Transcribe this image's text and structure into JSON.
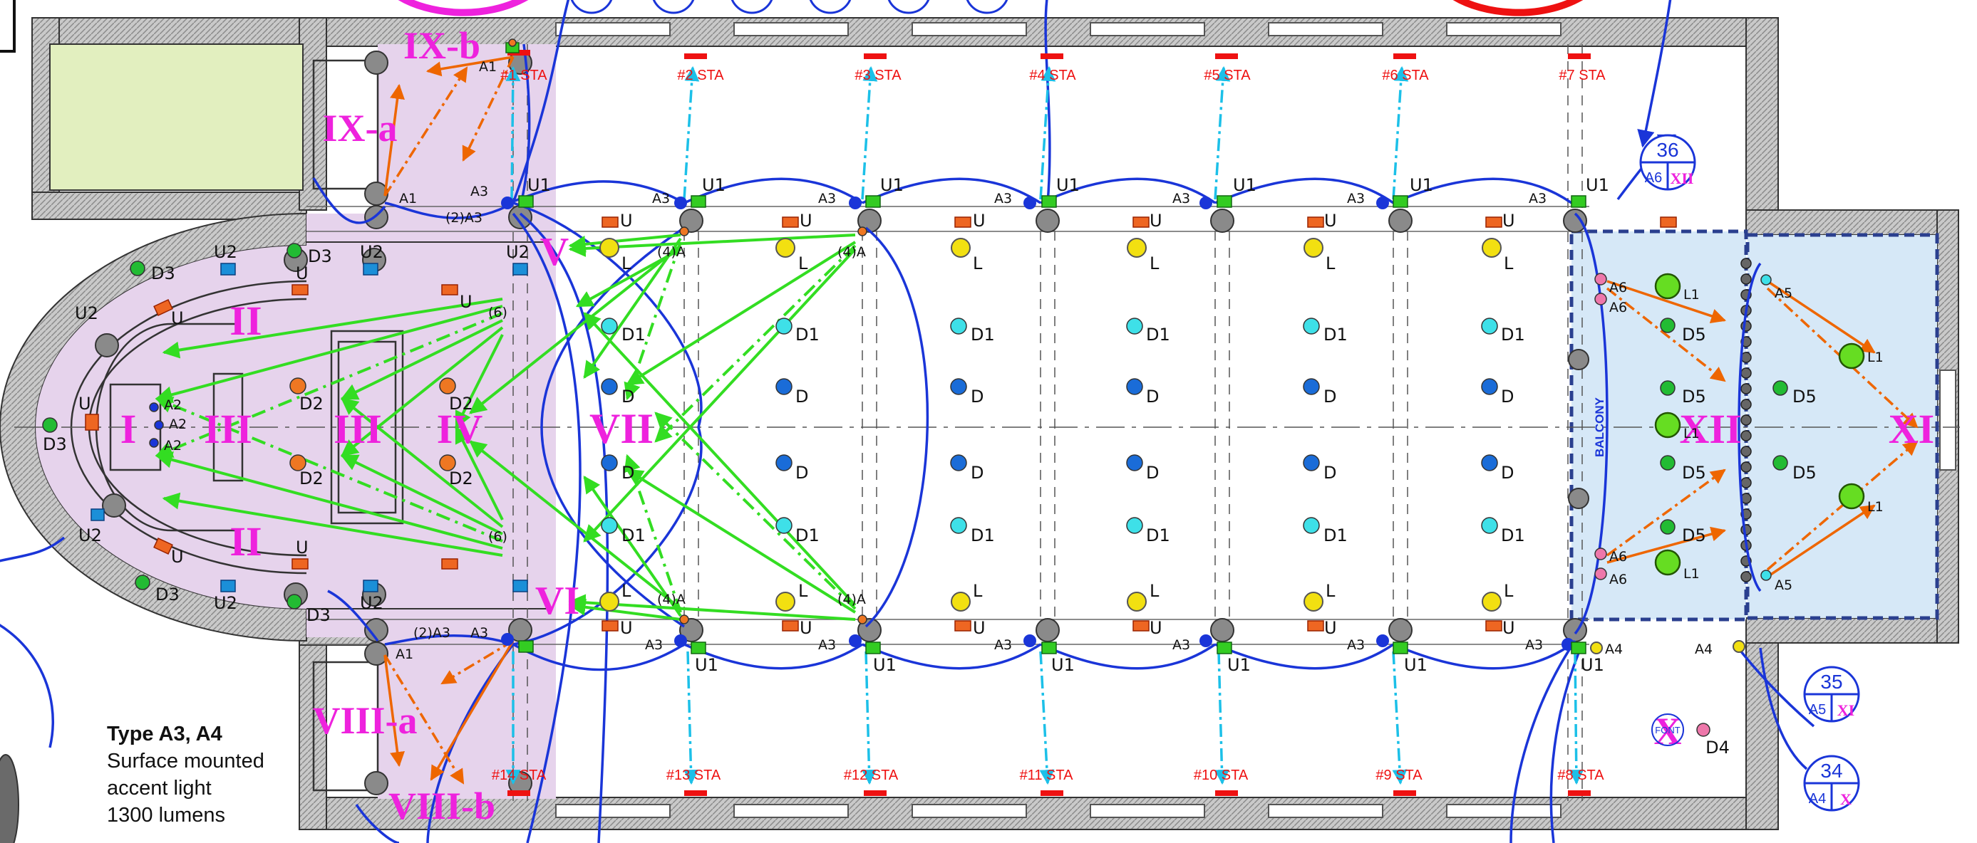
{
  "legend": {
    "title": "Type A3, A4",
    "lines": [
      "Surface mounted",
      "accent light",
      "1300 lumens"
    ]
  },
  "zones": {
    "I": "I",
    "II_top": "II",
    "II_bottom": "II",
    "III_left": "III",
    "III_right": "III",
    "IV": "IV",
    "V": "V",
    "VI": "VI",
    "VII": "VII",
    "VIII_a": "VIII-a",
    "VIII_b": "VIII-b",
    "IX_a": "IX-a",
    "IX_b": "IX-b",
    "X_font": "X",
    "XI": "XI",
    "XII": "XII"
  },
  "stations_top": [
    "#1 STA",
    "#2 STA",
    "#3 STA",
    "#4 STA",
    "#5 STA",
    "#6 STA",
    "#7 STA"
  ],
  "stations_bottom": [
    "#14 STA",
    "#13 STA",
    "#12 STA",
    "#11 STA",
    "#10 STA",
    "#9 STA",
    "#8 STA"
  ],
  "fixture_types": {
    "A1": "A1",
    "A2": "A2",
    "A3": "A3",
    "A4": "A4",
    "A5": "A5",
    "A6": "A6",
    "U": "U",
    "U1": "U1",
    "U2": "U2",
    "L": "L",
    "L1": "L1",
    "D1": "D1",
    "D": "D",
    "D2": "D2",
    "D3": "D3",
    "D4": "D4",
    "D5": "D5",
    "four_a": "(4)A",
    "six": "(6)",
    "two_a3": "(2)A3"
  },
  "balcony_label": "BALCONY",
  "font_label": "FONT",
  "callouts": [
    {
      "number": "36",
      "type": "A6",
      "zone": "XII"
    },
    {
      "number": "35",
      "type": "A5",
      "zone": "XI"
    },
    {
      "number": "34",
      "type": "A4",
      "zone": "X"
    }
  ],
  "colors": {
    "zone_pink": "#e6d3ec",
    "zone_blue": "#d6e8f7",
    "roman": "#ee22dd",
    "station": "#ee1111",
    "arrow_green": "#33dd22",
    "arrow_orange": "#ee6600",
    "arc_blue": "#1a35d8",
    "aim_cyan": "#1cc0e8",
    "fixture_green": "#22aa33",
    "fixture_yellow": "#f2e011",
    "fixture_orange": "#ee6622"
  }
}
